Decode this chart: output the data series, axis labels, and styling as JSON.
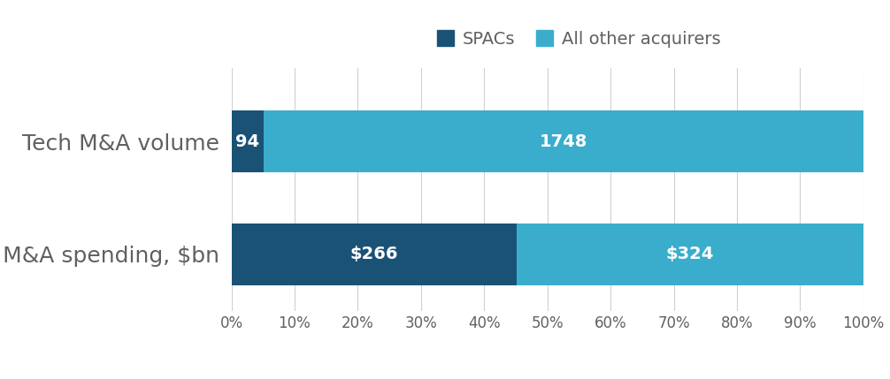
{
  "categories": [
    "Tech M&A volume",
    "Tech M&A spending, $bn"
  ],
  "spac_values": [
    94,
    266
  ],
  "other_values": [
    1748,
    324
  ],
  "spac_labels": [
    "94",
    "$266"
  ],
  "other_labels": [
    "1748",
    "$324"
  ],
  "spac_color": "#1a5276",
  "other_color": "#3aadcc",
  "legend_labels": [
    "SPACs",
    "All other acquirers"
  ],
  "background_color": "#ffffff",
  "bar_height": 0.55,
  "label_fontsize": 14,
  "tick_fontsize": 12,
  "legend_fontsize": 14,
  "category_fontsize": 18,
  "text_color": "#ffffff",
  "axis_label_color": "#606060",
  "category_label_color": "#606060",
  "grid_color": "#d0d0d0"
}
